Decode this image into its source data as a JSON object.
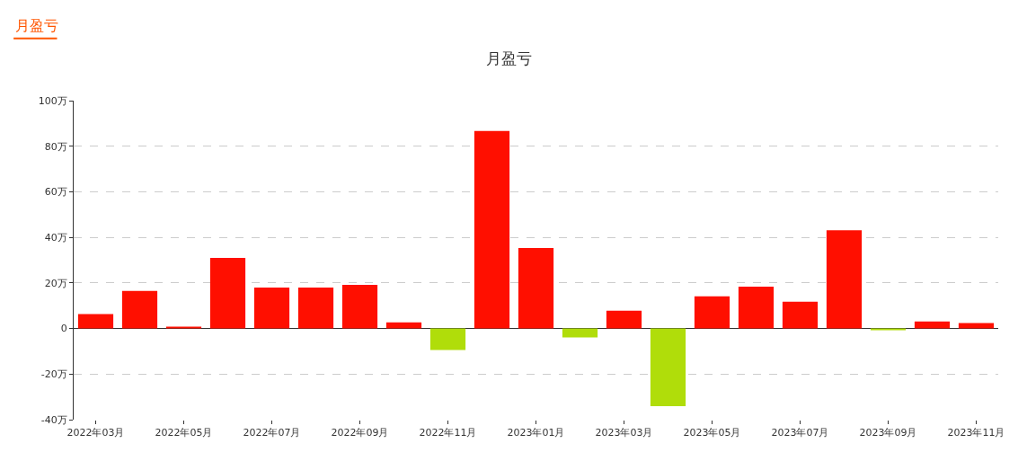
{
  "chart_data": {
    "type": "bar",
    "title": "月盈亏",
    "annotations": [
      "月盈亏"
    ],
    "categories": [
      "2022年03月",
      null,
      "2022年05月",
      null,
      "2022年07月",
      null,
      "2022年09月",
      null,
      "2022年11月",
      null,
      "2023年01月",
      null,
      "2023年03月",
      null,
      "2023年05月",
      null,
      "2023年07月",
      null,
      "2023年09月",
      null,
      "2023年11月"
    ],
    "values": [
      6.3,
      16.5,
      0.8,
      31,
      18,
      18,
      19.2,
      2.7,
      -9.4,
      86.7,
      35.3,
      -3.9,
      7.8,
      -34.1,
      14.1,
      18.4,
      11.8,
      43.1,
      -0.8,
      3.1,
      2.4
    ],
    "colors": [
      "#ff0f00",
      "#ff0f00",
      "#ff0f00",
      "#ff0f00",
      "#ff0f00",
      "#ff0f00",
      "#ff0f00",
      "#ff0f00",
      "#b0dd0a",
      "#ff0f00",
      "#ff0f00",
      "#b0dd0a",
      "#ff0f00",
      "#b0dd0a",
      "#ff0f00",
      "#ff0f00",
      "#ff0f00",
      "#ff0f00",
      "#b0dd0a",
      "#ff0f00",
      "#ff0f00"
    ],
    "ylim": [
      -40,
      100
    ],
    "yticks": [
      {
        "value": -40,
        "label": "-40万"
      },
      {
        "value": -20,
        "label": "-20万"
      },
      {
        "value": 0,
        "label": "0"
      },
      {
        "value": 20,
        "label": "20万"
      },
      {
        "value": 40,
        "label": "40万"
      },
      {
        "value": 60,
        "label": "60万"
      },
      {
        "value": 80,
        "label": "80万"
      },
      {
        "value": 100,
        "label": "100万"
      }
    ],
    "grid": "y"
  }
}
